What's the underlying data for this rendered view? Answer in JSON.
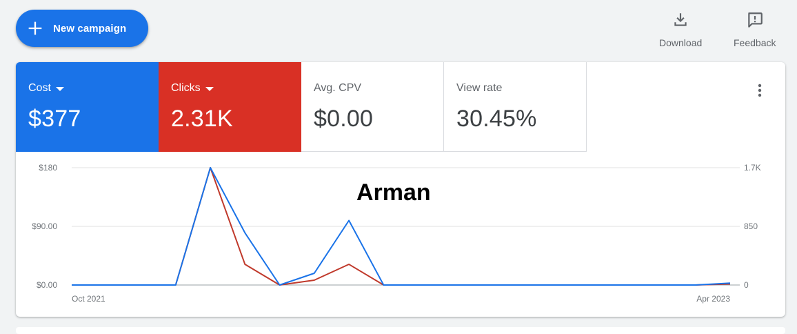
{
  "toolbar": {
    "new_campaign_label": "New campaign",
    "download_label": "Download",
    "feedback_label": "Feedback"
  },
  "metrics": [
    {
      "label": "Cost",
      "value": "$377",
      "selected": true,
      "color": "#1a73e8"
    },
    {
      "label": "Clicks",
      "value": "2.31K",
      "selected": true,
      "color": "#d93025"
    },
    {
      "label": "Avg. CPV",
      "value": "$0.00",
      "selected": false
    },
    {
      "label": "View rate",
      "value": "30.45%",
      "selected": false
    }
  ],
  "overlay_text": "Arman",
  "chart_data": {
    "type": "line",
    "x_tick_labels": [
      "Oct 2021",
      "Apr 2023"
    ],
    "y_left": {
      "ticks": [
        "$180",
        "$90.00",
        "$0.00"
      ],
      "range": [
        0,
        180
      ]
    },
    "y_right": {
      "ticks": [
        "1.7K",
        "850",
        "0"
      ],
      "range": [
        0,
        1700
      ]
    },
    "grid": true,
    "series": [
      {
        "axis": "left",
        "color": "#1a73e8",
        "values": [
          0,
          0,
          0,
          0,
          180,
          80,
          0,
          18,
          99,
          0,
          0,
          0,
          0,
          0,
          0,
          0,
          0,
          0,
          0,
          3
        ]
      },
      {
        "axis": "right",
        "color": "#c0392b",
        "values": [
          0,
          0,
          0,
          0,
          1700,
          300,
          0,
          70,
          300,
          0,
          0,
          0,
          0,
          0,
          0,
          0,
          0,
          0,
          0,
          15
        ]
      }
    ]
  }
}
